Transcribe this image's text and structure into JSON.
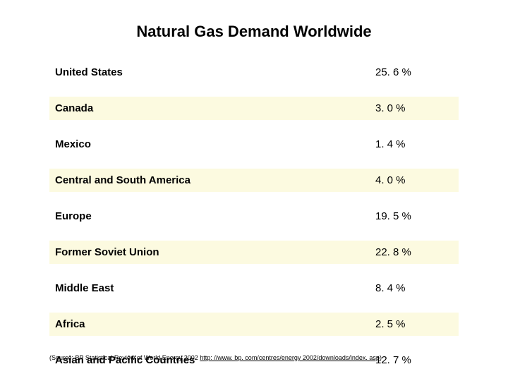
{
  "title": "Natural Gas Demand Worldwide",
  "rows": [
    {
      "region": "United States",
      "value": "25. 6 %"
    },
    {
      "region": "Canada",
      "value": "3. 0 %"
    },
    {
      "region": "Mexico",
      "value": "1. 4 %"
    },
    {
      "region": "Central and South America",
      "value": "4. 0 %"
    },
    {
      "region": "Europe",
      "value": "19. 5 %"
    },
    {
      "region": "Former Soviet Union",
      "value": "22. 8 %"
    },
    {
      "region": "Middle East",
      "value": "8. 4 %"
    },
    {
      "region": "Africa",
      "value": "2. 5 %"
    },
    {
      "region": "Asian and Pacific Countries",
      "value": "12. 7 %"
    }
  ],
  "source_prefix": "(Source: BP Statistical Review of World Energy 2002 ",
  "source_link": "http: //www. bp. com/centres/energy 2002/downloads/index. asp",
  "source_suffix": ")",
  "stripe_color": "#fcfae0",
  "background_color": "#ffffff"
}
